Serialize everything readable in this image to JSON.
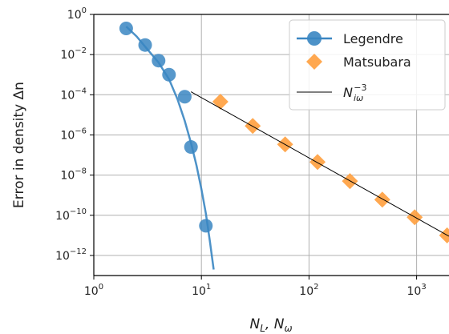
{
  "chart_data": {
    "type": "scatter",
    "xscale": "log",
    "yscale": "log",
    "xlim": [
      1,
      2000
    ],
    "ylim": [
      1e-13,
      1
    ],
    "grid": true,
    "xlabel": "N_L, N_ω",
    "ylabel": "Error in density Δn",
    "legend_position": "top-right",
    "x_ticks": [
      {
        "value": 1,
        "base": "10",
        "exp": "0"
      },
      {
        "value": 10,
        "base": "10",
        "exp": "1"
      },
      {
        "value": 100,
        "base": "10",
        "exp": "2"
      },
      {
        "value": 1000,
        "base": "10",
        "exp": "3"
      }
    ],
    "y_ticks": [
      {
        "value": 1,
        "base": "10",
        "exp": "0"
      },
      {
        "value": 0.01,
        "base": "10",
        "exp": "−2"
      },
      {
        "value": 0.0001,
        "base": "10",
        "exp": "−4"
      },
      {
        "value": 1e-06,
        "base": "10",
        "exp": "−6"
      },
      {
        "value": 1e-08,
        "base": "10",
        "exp": "−8"
      },
      {
        "value": 1e-10,
        "base": "10",
        "exp": "−10"
      },
      {
        "value": 1e-12,
        "base": "10",
        "exp": "−12"
      }
    ],
    "series": [
      {
        "name": "Legendre",
        "color": "#3a86c2",
        "marker": "circle",
        "line": true,
        "x": [
          2,
          3,
          4,
          5,
          7,
          8,
          11
        ],
        "y": [
          0.2,
          0.03,
          0.005,
          0.001,
          8e-05,
          2.5e-07,
          3e-11
        ],
        "curve_x": [
          2,
          2.5,
          3,
          4,
          5,
          6,
          7,
          8,
          9,
          10,
          11,
          12,
          13
        ],
        "curve_y": [
          0.25,
          0.08,
          0.025,
          0.004,
          0.0006,
          6e-05,
          5e-06,
          4e-07,
          3e-08,
          2e-09,
          1.2e-10,
          5e-12,
          2e-13
        ]
      },
      {
        "name": "Matsubara",
        "color": "#ff9e3d",
        "marker": "diamond",
        "line": false,
        "x": [
          15,
          30,
          60,
          120,
          240,
          480,
          960,
          1920
        ],
        "y": [
          4.5e-05,
          2.8e-06,
          3.4e-07,
          4.5e-08,
          5e-09,
          6e-10,
          8e-11,
          1e-11
        ]
      },
      {
        "name": "N_iω^−3",
        "color": "#000000",
        "marker": "none",
        "line": true,
        "x": [
          8,
          2000
        ],
        "y": [
          0.00014,
          9e-12
        ]
      }
    ]
  },
  "labels": {
    "xlabel_main": "N",
    "xlabel_sub1": "L",
    "xlabel_sep": ", N",
    "xlabel_sub2": "ω",
    "ylabel": "Error in density Δn",
    "legend_legendre": "Legendre",
    "legend_matsubara": "Matsubara",
    "legend_ref_main": "N",
    "legend_ref_sub": "iω",
    "legend_ref_sup": "−3"
  }
}
